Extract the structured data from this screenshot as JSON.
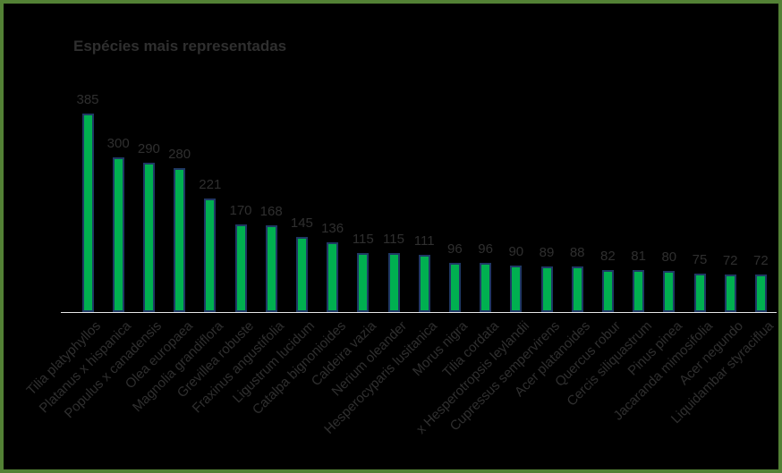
{
  "chart_data": {
    "type": "bar",
    "title": "Espécies mais representadas",
    "categories": [
      "Tilia platyphyllos",
      "Platanus x hispanica",
      "Populus x canadensis",
      "Olea europaea",
      "Magnolia grandiflora",
      "Grevillea robuste",
      "Fraxinus angustifolia",
      "Ligustrum lucidum",
      "Catalpa bignonioides",
      "Caldeira vazia",
      "Nerium oleander",
      "Hesperocyparis lusitanica",
      "Morus nigra",
      "Tilia cordata",
      "x Hesperotropsis leylandii",
      "Cupressus sempervirens",
      "Acer platanoides",
      "Quercus robur",
      "Cercis siliquastrum",
      "Pinus pinea",
      "Jacaranda mimosifolia",
      "Acer negundo",
      "Liquidambar styraciflua"
    ],
    "values": [
      385,
      300,
      290,
      280,
      221,
      170,
      168,
      145,
      136,
      115,
      115,
      111,
      96,
      96,
      90,
      89,
      88,
      82,
      81,
      80,
      75,
      72,
      72
    ],
    "xlabel": "",
    "ylabel": "",
    "y_axis_visible": false,
    "grid": false,
    "legend": false,
    "value_labels_shown": true,
    "x_labels_rotation_deg": 45,
    "colors": {
      "background": "#000000",
      "frame_border": "#538135",
      "bar_fill": "#00B050",
      "bar_border": "#1F3864",
      "axis_line": "#E6E6E6",
      "text": "#2F2F2F"
    }
  }
}
